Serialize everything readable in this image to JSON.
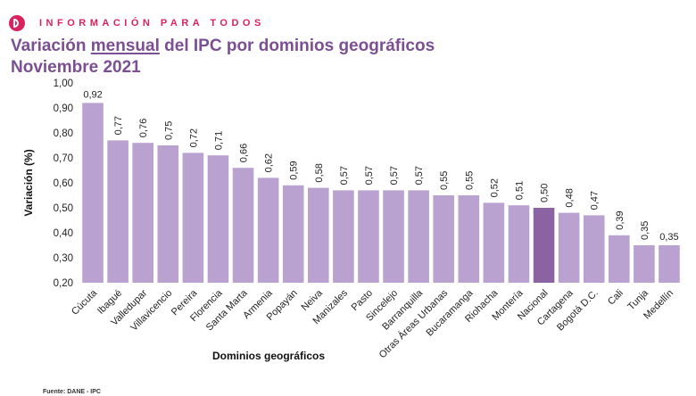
{
  "header": {
    "tagline": "INFORMACIÓN PARA TODOS",
    "title_pre": "Variación ",
    "title_underlined": "mensual",
    "title_post": " del IPC por dominios geográficos",
    "subtitle": "Noviembre 2021"
  },
  "source": "Fuente: DANE - IPC",
  "colors": {
    "bar": "#b9a2d0",
    "highlight": "#8c63a2",
    "title": "#7b4f93",
    "brand": "#d8235f"
  },
  "chart_data": {
    "type": "bar",
    "xlabel": "Dominios geográficos",
    "ylabel": "Variación (%)",
    "ylim": [
      0.2,
      1.0
    ],
    "yticks": [
      "0,20",
      "0,30",
      "0,40",
      "0,50",
      "0,60",
      "0,70",
      "0,80",
      "0,90",
      "1,00"
    ],
    "grid": false,
    "highlight_category": "Nacional",
    "categories": [
      "Cúcuta",
      "Ibagué",
      "Valledupar",
      "Villavicencio",
      "Pereira",
      "Florencia",
      "Santa Marta",
      "Armenia",
      "Popayán",
      "Neiva",
      "Manizales",
      "Pasto",
      "Sincelejo",
      "Barranquilla",
      "Otras Áreas Urbanas",
      "Bucaramanga",
      "Riohacha",
      "Montería",
      "Nacional",
      "Cartagena",
      "Bogotá D.C.",
      "Cali",
      "Tunja",
      "Medellín"
    ],
    "values": [
      0.92,
      0.77,
      0.76,
      0.75,
      0.72,
      0.71,
      0.66,
      0.62,
      0.59,
      0.58,
      0.57,
      0.57,
      0.57,
      0.57,
      0.55,
      0.55,
      0.52,
      0.51,
      0.5,
      0.48,
      0.47,
      0.39,
      0.35,
      0.35
    ],
    "data_labels": [
      "0,92",
      "0,77",
      "0,76",
      "0,75",
      "0,72",
      "0,71",
      "0,66",
      "0,62",
      "0,59",
      "0,58",
      "0,57",
      "0,57",
      "0,57",
      "0,57",
      "0,55",
      "0,55",
      "0,52",
      "0,51",
      "0,50",
      "0,48",
      "0,47",
      "0,39",
      "0,35",
      "0,35"
    ]
  }
}
